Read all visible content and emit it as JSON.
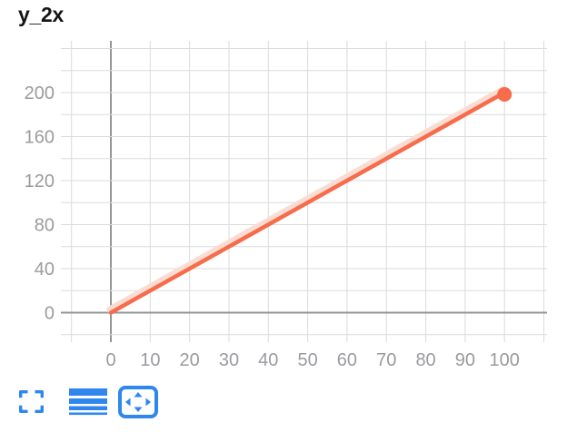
{
  "title": "y_2x",
  "colors": {
    "background": "#FFFFFF",
    "title": "#141414",
    "line": "#F76C4B",
    "line_halo": "#FADCD2",
    "axis": "#949494",
    "grid": "#DBDBDB",
    "tick_label": "#9B9B9F",
    "toolbar_icon": "#2F86EC"
  },
  "chart_data": {
    "type": "line",
    "title": "y_2x",
    "series": [
      {
        "name": "y_2x",
        "points": [
          [
            0,
            0
          ],
          [
            100,
            200
          ]
        ],
        "end_marker": true
      }
    ],
    "xlim": [
      -12.7,
      110.8
    ],
    "ylim": [
      -26.8,
      247.0
    ],
    "x_grid": [
      -10,
      0,
      10,
      20,
      30,
      40,
      50,
      60,
      70,
      80,
      90,
      100,
      110
    ],
    "y_grid": [
      -20,
      0,
      20,
      40,
      60,
      80,
      100,
      120,
      140,
      160,
      180,
      200,
      220,
      240
    ],
    "x_tick_values": [
      0,
      10,
      20,
      30,
      40,
      50,
      60,
      70,
      80,
      90,
      100
    ],
    "x_tick_labels": [
      "0",
      "10",
      "20",
      "30",
      "40",
      "50",
      "60",
      "70",
      "80",
      "90",
      "100"
    ],
    "y_tick_values": [
      0,
      40,
      80,
      120,
      160,
      200
    ],
    "y_tick_labels": [
      "0",
      "40",
      "80",
      "120",
      "160",
      "200"
    ],
    "grid": true,
    "legend": false
  },
  "toolbar": {
    "buttons": [
      {
        "icon": "fullscreen-icon"
      },
      {
        "icon": "line-width-icon"
      },
      {
        "icon": "pan-arrows-icon"
      }
    ]
  }
}
